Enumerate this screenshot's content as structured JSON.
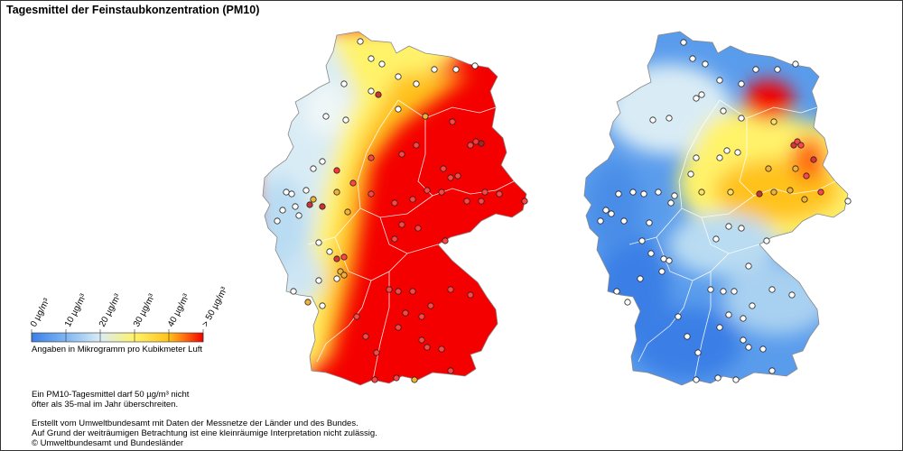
{
  "title": "Tagesmittel der Feinstaubkonzentration (PM10)",
  "legend": {
    "ticks": [
      "0 µg/m³",
      "10 µg/m³",
      "20 µg/m³",
      "30 µg/m³",
      "40 µg/m³",
      "> 50 µg/m³"
    ],
    "colors": [
      "#3a7fe6",
      "#7fb6f2",
      "#d9ecf5",
      "#fff36a",
      "#ffc21a",
      "#f40000"
    ],
    "caption": "Angaben in Mikrogramm pro Kubikmeter Luft"
  },
  "notes": {
    "limit_line1": "Ein PM10-Tagesmittel darf 50 µg/m³ nicht",
    "limit_line2": "öfter als 35-mal im Jahr überschreiten.",
    "credit_line1": "Erstellt vom Umweltbundesamt mit Daten der Messnetze der Länder und des Bundes.",
    "credit_line2": "Auf Grund der weiträumigen Betrachtung ist eine kleinräumige Interpretation nicht zulässig.",
    "credit_line3": "© Umweltbundesamt und Bundesländer"
  },
  "maps": [
    {
      "name": "map-left",
      "dominant_level": "> 50 µg/m³"
    },
    {
      "name": "map-right",
      "dominant_level": "10 µg/m³"
    }
  ]
}
